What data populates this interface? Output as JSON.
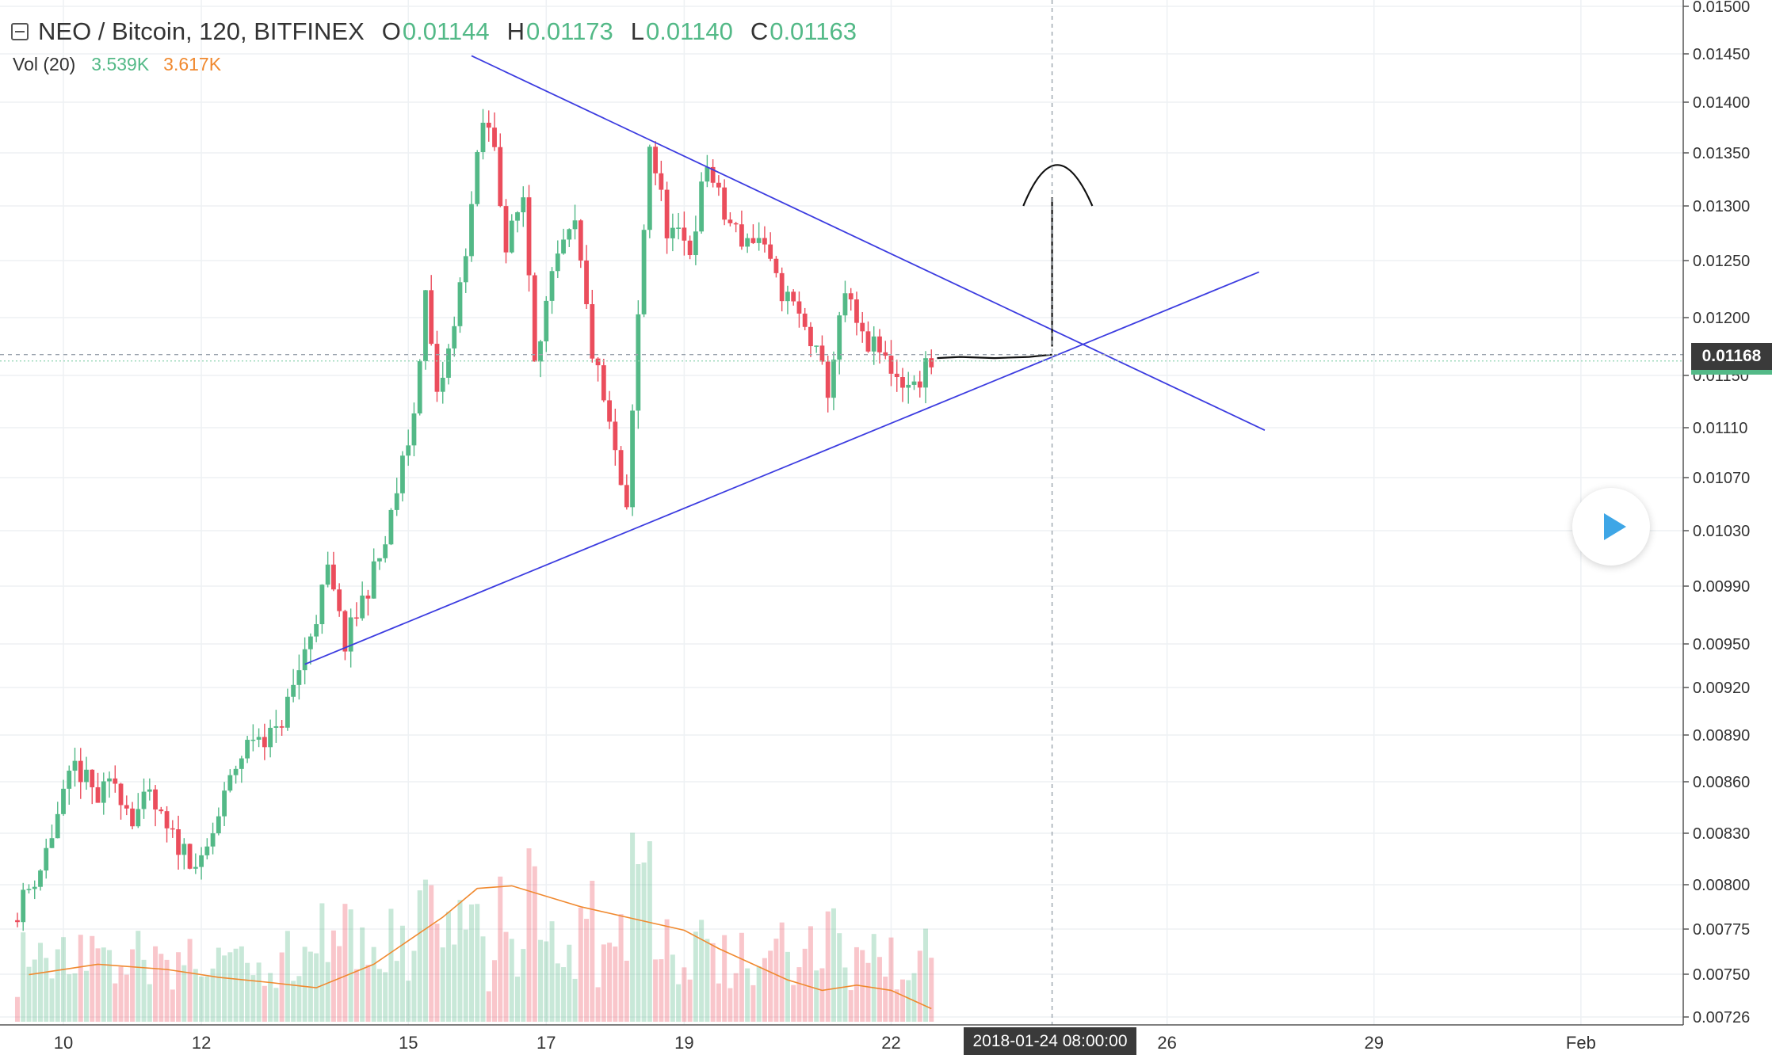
{
  "legend": {
    "symbol": "NEO / Bitcoin, 120, BITFINEX",
    "o_key": "O",
    "o_val": "0.01144",
    "h_key": "H",
    "h_val": "0.01173",
    "l_key": "L",
    "l_val": "0.01140",
    "c_key": "C",
    "c_val": "0.01163",
    "vol_label": "Vol (20)",
    "vol_val1": "3.539K",
    "vol_val2": "3.617K"
  },
  "last_price_tag": "0.01168",
  "crosshair_time": "2018-01-24 08:00:00",
  "icons": {
    "collapse": "collapse-icon",
    "play": "play-icon"
  },
  "colors": {
    "up": "#53b987",
    "down": "#eb4d5c",
    "trendline": "#3c3ce0",
    "ma": "#f0892f"
  },
  "chart_data": {
    "type": "candlestick",
    "interval_hours": 2,
    "x_labels": [
      "10",
      "12",
      "15",
      "17",
      "19",
      "22",
      "26",
      "29",
      "Feb"
    ],
    "x_label_dates": [
      "2018-01-10",
      "2018-01-12",
      "2018-01-15",
      "2018-01-17",
      "2018-01-19",
      "2018-01-22",
      "2018-01-26",
      "2018-01-29",
      "2018-02-01"
    ],
    "y_ticks": [
      "0.01500",
      "0.01450",
      "0.01400",
      "0.01350",
      "0.01300",
      "0.01250",
      "0.01200",
      "0.01150",
      "0.01110",
      "0.01070",
      "0.01030",
      "0.00990",
      "0.00950",
      "0.00920",
      "0.00890",
      "0.00860",
      "0.00830",
      "0.00800",
      "0.00775",
      "0.00750",
      "0.00726"
    ],
    "y_range": [
      0.00726,
      0.015
    ],
    "last_price": 0.01168,
    "crosshair": {
      "date": "2018-01-24 08:00:00",
      "price": 0.01168
    },
    "trendlines": [
      {
        "name": "upper",
        "from": [
          "2018-01-15 22:00",
          0.01448
        ],
        "to": [
          "2018-01-27 10:00",
          0.01108
        ]
      },
      {
        "name": "lower",
        "from": [
          "2018-01-13 12:00",
          0.00936
        ],
        "to": [
          "2018-01-27 08:00",
          0.0124
        ]
      }
    ],
    "price_points": [
      [
        "2018-01-09 08:00",
        0.0078
      ],
      [
        "2018-01-09 18:00",
        0.0081
      ],
      [
        "2018-01-10 00:00",
        0.0084
      ],
      [
        "2018-01-10 06:00",
        0.0087
      ],
      [
        "2018-01-10 14:00",
        0.0085
      ],
      [
        "2018-01-10 20:00",
        0.0086
      ],
      [
        "2018-01-11 02:00",
        0.0084
      ],
      [
        "2018-01-11 08:00",
        0.0085
      ],
      [
        "2018-01-11 14:00",
        0.0083
      ],
      [
        "2018-01-11 20:00",
        0.0082
      ],
      [
        "2018-01-12 02:00",
        0.0081
      ],
      [
        "2018-01-12 08:00",
        0.0084
      ],
      [
        "2018-01-12 14:00",
        0.0087
      ],
      [
        "2018-01-12 20:00",
        0.0089
      ],
      [
        "2018-01-13 04:00",
        0.0089
      ],
      [
        "2018-01-13 10:00",
        0.0092
      ],
      [
        "2018-01-13 18:00",
        0.0097
      ],
      [
        "2018-01-13 22:00",
        0.01
      ],
      [
        "2018-01-14 04:00",
        0.0095
      ],
      [
        "2018-01-14 10:00",
        0.0098
      ],
      [
        "2018-01-14 18:00",
        0.0102
      ],
      [
        "2018-01-15 00:00",
        0.0108
      ],
      [
        "2018-01-15 04:00",
        0.0112
      ],
      [
        "2018-01-15 08:00",
        0.0122
      ],
      [
        "2018-01-15 12:00",
        0.0113
      ],
      [
        "2018-01-15 18:00",
        0.0119
      ],
      [
        "2018-01-16 00:00",
        0.013
      ],
      [
        "2018-01-16 04:00",
        0.0138
      ],
      [
        "2018-01-16 08:00",
        0.0136
      ],
      [
        "2018-01-16 12:00",
        0.0126
      ],
      [
        "2018-01-16 18:00",
        0.0131
      ],
      [
        "2018-01-16 22:00",
        0.0117
      ],
      [
        "2018-01-17 06:00",
        0.0125
      ],
      [
        "2018-01-17 12:00",
        0.0128
      ],
      [
        "2018-01-17 18:00",
        0.0117
      ],
      [
        "2018-01-18 00:00",
        0.0111
      ],
      [
        "2018-01-18 06:00",
        0.0104
      ],
      [
        "2018-01-18 10:00",
        0.012
      ],
      [
        "2018-01-18 14:00",
        0.0136
      ],
      [
        "2018-01-18 20:00",
        0.0128
      ],
      [
        "2018-01-19 04:00",
        0.0126
      ],
      [
        "2018-01-19 10:00",
        0.0134
      ],
      [
        "2018-01-19 16:00",
        0.0129
      ],
      [
        "2018-01-19 22:00",
        0.0127
      ],
      [
        "2018-01-20 04:00",
        0.0127
      ],
      [
        "2018-01-20 10:00",
        0.0123
      ],
      [
        "2018-01-20 16:00",
        0.0121
      ],
      [
        "2018-01-20 22:00",
        0.0118
      ],
      [
        "2018-01-21 04:00",
        0.0114
      ],
      [
        "2018-01-21 10:00",
        0.0122
      ],
      [
        "2018-01-21 16:00",
        0.0118
      ],
      [
        "2018-01-21 22:00",
        0.0117
      ],
      [
        "2018-01-22 04:00",
        0.0115
      ],
      [
        "2018-01-22 10:00",
        0.0114
      ],
      [
        "2018-01-22 14:00",
        0.0116
      ]
    ],
    "volume_ma": [
      [
        "2018-01-09 12:00",
        0.18
      ],
      [
        "2018-01-10 12:00",
        0.22
      ],
      [
        "2018-01-11 12:00",
        0.2
      ],
      [
        "2018-01-12 06:00",
        0.17
      ],
      [
        "2018-01-13 00:00",
        0.15
      ],
      [
        "2018-01-13 16:00",
        0.13
      ],
      [
        "2018-01-14 12:00",
        0.22
      ],
      [
        "2018-01-15 12:00",
        0.4
      ],
      [
        "2018-01-16 00:00",
        0.51
      ],
      [
        "2018-01-16 12:00",
        0.52
      ],
      [
        "2018-01-17 00:00",
        0.48
      ],
      [
        "2018-01-17 12:00",
        0.44
      ],
      [
        "2018-01-18 12:00",
        0.38
      ],
      [
        "2018-01-19 00:00",
        0.35
      ],
      [
        "2018-01-19 12:00",
        0.28
      ],
      [
        "2018-01-20 12:00",
        0.16
      ],
      [
        "2018-01-21 00:00",
        0.12
      ],
      [
        "2018-01-21 12:00",
        0.14
      ],
      [
        "2018-01-22 00:00",
        0.12
      ],
      [
        "2018-01-22 14:00",
        0.05
      ]
    ],
    "projection_path": [
      [
        "2018-01-22 16:00",
        0.01165
      ],
      [
        "2018-01-23 00:00",
        0.01166
      ],
      [
        "2018-01-23 12:00",
        0.01165
      ],
      [
        "2018-01-24 00:00",
        0.01166
      ],
      [
        "2018-01-24 08:00",
        0.01168
      ]
    ],
    "arrow": {
      "date": "2018-01-24 08:00",
      "from_price": 0.01175,
      "to_price": 0.01308
    },
    "arrowhead": [
      [
        "2018-01-23 22:00",
        0.013
      ],
      [
        "2018-01-24 06:00",
        0.01338
      ],
      [
        "2018-01-24 14:00",
        0.01335
      ],
      [
        "2018-01-24 22:00",
        0.013
      ]
    ]
  }
}
